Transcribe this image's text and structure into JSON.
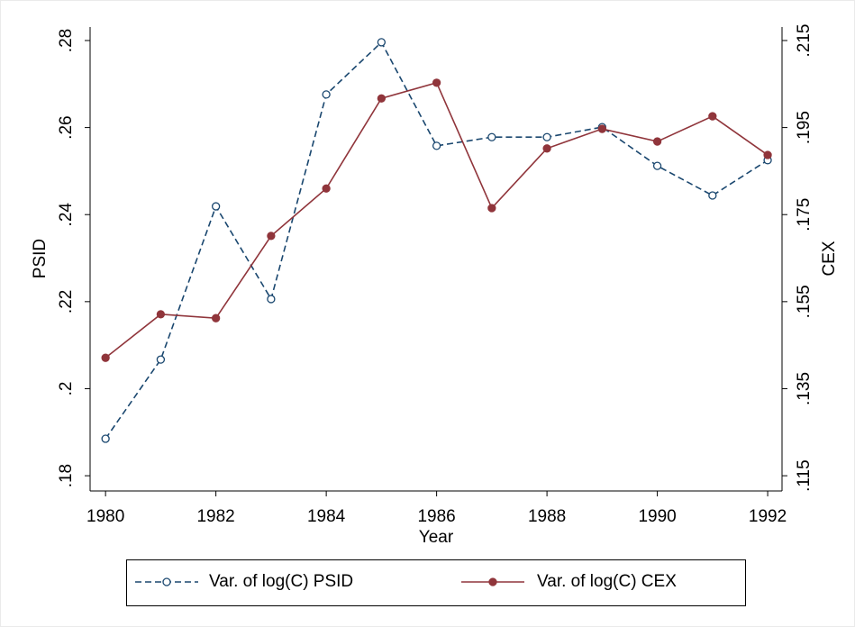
{
  "chart_data": {
    "type": "line",
    "x_label": "Year",
    "y_label": "PSID",
    "y2_label": "CEX",
    "x": [
      1980,
      1981,
      1982,
      1983,
      1984,
      1985,
      1986,
      1987,
      1988,
      1989,
      1990,
      1991,
      1992
    ],
    "series": [
      {
        "name": "Var. of log(C) PSID",
        "color": "#1a476f",
        "dashed": true,
        "marker": "hollow-circle",
        "values": [
          0.1885,
          0.2067,
          0.2419,
          0.2206,
          0.2676,
          0.2796,
          0.2558,
          0.2578,
          0.2578,
          0.2601,
          0.2512,
          0.2444,
          0.2525
        ]
      },
      {
        "name": "Var. of log(C) CEX",
        "color": "#90353b",
        "dashed": false,
        "marker": "filled-circle",
        "axis": "y2",
        "values": [
          0.1421,
          0.1521,
          0.1512,
          0.1701,
          0.181,
          0.2017,
          0.2053,
          0.1765,
          0.1902,
          0.1947,
          0.1918,
          0.1976,
          0.1887
        ]
      }
    ],
    "xlim": [
      1979.72,
      1992.26
    ],
    "xticks": [
      1980,
      1982,
      1984,
      1986,
      1988,
      1990,
      1992
    ],
    "ylim": [
      0.1765,
      0.2831
    ],
    "yticks": [
      {
        "value": 0.18,
        "label": ".18"
      },
      {
        "value": 0.2,
        "label": ".2"
      },
      {
        "value": 0.22,
        "label": ".22"
      },
      {
        "value": 0.24,
        "label": ".24"
      },
      {
        "value": 0.26,
        "label": ".26"
      },
      {
        "value": 0.28,
        "label": ".28"
      }
    ],
    "y2lim": [
      0.1115,
      0.2181
    ],
    "y2ticks": [
      {
        "value": 0.115,
        "label": ".115"
      },
      {
        "value": 0.135,
        "label": ".135"
      },
      {
        "value": 0.155,
        "label": ".155"
      },
      {
        "value": 0.175,
        "label": ".175"
      },
      {
        "value": 0.195,
        "label": ".195"
      },
      {
        "value": 0.215,
        "label": ".215"
      }
    ],
    "grid": false,
    "legend": "bottom"
  }
}
